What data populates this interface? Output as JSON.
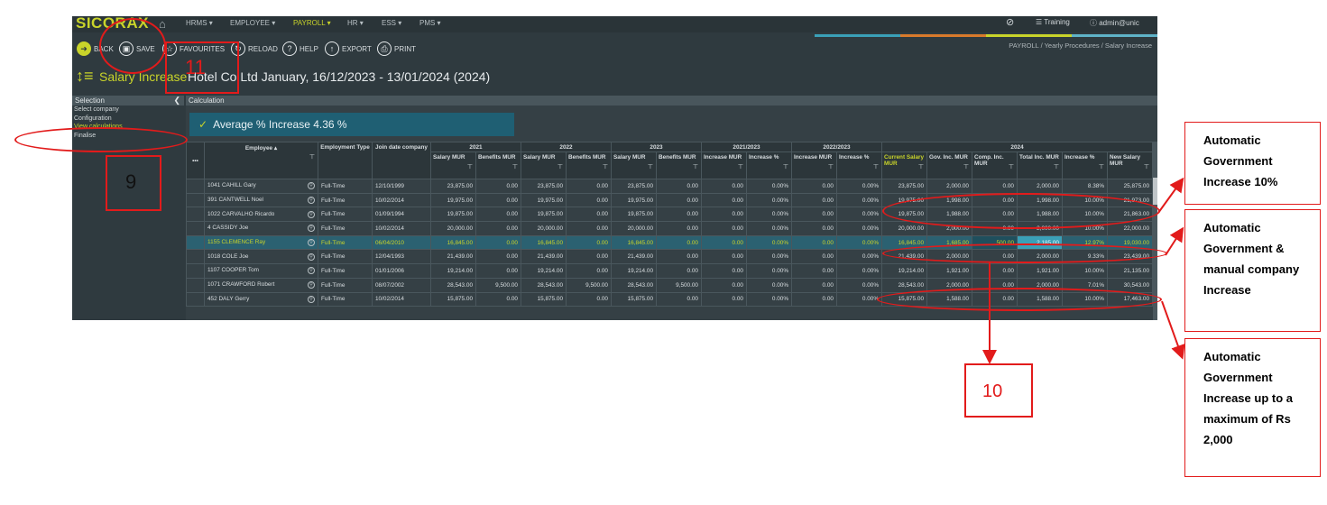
{
  "app": {
    "logo": "SICORAX",
    "menus": [
      "HRMS ▾",
      "EMPLOYEE ▾",
      "PAYROLL ▾",
      "HR ▾",
      "ESS ▾",
      "PMS ▾"
    ],
    "right_nav": {
      "env": "Training",
      "user": "admin@unic"
    },
    "accent": "#c9d42a"
  },
  "toolbar": {
    "back": "BACK",
    "save": "SAVE",
    "favourites": "FAVOURITES",
    "reload": "RELOAD",
    "help": "HELP",
    "export": "EXPORT",
    "print": "PRINT"
  },
  "breadcrumb": "PAYROLL /  Yearly Procedures /  Salary Increase",
  "title": {
    "main": "Salary Increase",
    "sub": "Hotel Co Ltd January, 16/12/2023 - 13/01/2024 (2024)"
  },
  "sidebar": {
    "header": "Selection",
    "items": [
      "Select company",
      "Configuration",
      "View calculations",
      "Finalise"
    ]
  },
  "calc": {
    "header": "Calculation",
    "average": "Average % Increase 4.36 %"
  },
  "table": {
    "group_headers": [
      "2021",
      "2022",
      "2023",
      "2021/2023",
      "2022/2023",
      "2024"
    ],
    "col_emp": "Employee ▴",
    "col_type": "Employment Type",
    "col_join": "Join date company",
    "sub": {
      "salary": "Salary MUR",
      "benefits": "Benefits MUR",
      "increase": "Increase MUR",
      "increase_pct": "Increase %",
      "current": "Current Salary MUR",
      "gov": "Gov. Inc. MUR",
      "comp": "Comp. Inc. MUR",
      "total": "Total Inc. MUR",
      "inc_pct": "Increase %",
      "new": "New Salary MUR"
    },
    "rows": [
      [
        "1041 CAHILL Gary",
        "Full-Time",
        "12/10/1999",
        "23,875.00",
        "0.00",
        "23,875.00",
        "0.00",
        "23,875.00",
        "0.00",
        "0.00",
        "0.00%",
        "0.00",
        "0.00%",
        "23,875.00",
        "2,000.00",
        "0.00",
        "2,000.00",
        "8.38%",
        "25,875.00"
      ],
      [
        "391 CANTWELL Noel",
        "Full-Time",
        "10/02/2014",
        "19,975.00",
        "0.00",
        "19,975.00",
        "0.00",
        "19,975.00",
        "0.00",
        "0.00",
        "0.00%",
        "0.00",
        "0.00%",
        "19,975.00",
        "1,998.00",
        "0.00",
        "1,998.00",
        "10.00%",
        "21,973.00"
      ],
      [
        "1022 CARVALHO Ricardo",
        "Full-Time",
        "01/09/1994",
        "19,875.00",
        "0.00",
        "19,875.00",
        "0.00",
        "19,875.00",
        "0.00",
        "0.00",
        "0.00%",
        "0.00",
        "0.00%",
        "19,875.00",
        "1,988.00",
        "0.00",
        "1,988.00",
        "10.00%",
        "21,863.00"
      ],
      [
        "4 CASSIDY Joe",
        "Full-Time",
        "10/02/2014",
        "20,000.00",
        "0.00",
        "20,000.00",
        "0.00",
        "20,000.00",
        "0.00",
        "0.00",
        "0.00%",
        "0.00",
        "0.00%",
        "20,000.00",
        "2,000.00",
        "0.00",
        "2,000.00",
        "10.00%",
        "22,000.00"
      ],
      [
        "1155 CLEMENCE Ray",
        "Full-Time",
        "06/04/2010",
        "16,845.00",
        "0.00",
        "16,845.00",
        "0.00",
        "16,845.00",
        "0.00",
        "0.00",
        "0.00%",
        "0.00",
        "0.00%",
        "16,845.00",
        "1,685.00",
        "500.00",
        "2,185.00",
        "12.97%",
        "19,030.00"
      ],
      [
        "1018 COLE Joe",
        "Full-Time",
        "12/04/1993",
        "21,439.00",
        "0.00",
        "21,439.00",
        "0.00",
        "21,439.00",
        "0.00",
        "0.00",
        "0.00%",
        "0.00",
        "0.00%",
        "21,439.00",
        "2,000.00",
        "0.00",
        "2,000.00",
        "9.33%",
        "23,439.00"
      ],
      [
        "1107 COOPER Tom",
        "Full-Time",
        "01/01/2006",
        "19,214.00",
        "0.00",
        "19,214.00",
        "0.00",
        "19,214.00",
        "0.00",
        "0.00",
        "0.00%",
        "0.00",
        "0.00%",
        "19,214.00",
        "1,921.00",
        "0.00",
        "1,921.00",
        "10.00%",
        "21,135.00"
      ],
      [
        "1071 CRAWFORD Robert",
        "Full-Time",
        "08/07/2002",
        "28,543.00",
        "9,500.00",
        "28,543.00",
        "9,500.00",
        "28,543.00",
        "9,500.00",
        "0.00",
        "0.00%",
        "0.00",
        "0.00%",
        "28,543.00",
        "2,000.00",
        "0.00",
        "2,000.00",
        "7.01%",
        "30,543.00"
      ],
      [
        "452 DALY Gerry",
        "Full-Time",
        "10/02/2014",
        "15,875.00",
        "0.00",
        "15,875.00",
        "0.00",
        "15,875.00",
        "0.00",
        "0.00",
        "0.00%",
        "0.00",
        "0.00%",
        "15,875.00",
        "1,588.00",
        "0.00",
        "1,588.00",
        "10.00%",
        "17,463.00"
      ]
    ],
    "highlighted_row": 4
  },
  "annotations": {
    "num9": "9",
    "num10": "10",
    "num11": "11",
    "note1": "Automatic Government Increase 10%",
    "note2": "Automatic Government & manual company Increase",
    "note3": "Automatic Government Increase up to a maximum of Rs 2,000",
    "color": "#e21b1b"
  }
}
